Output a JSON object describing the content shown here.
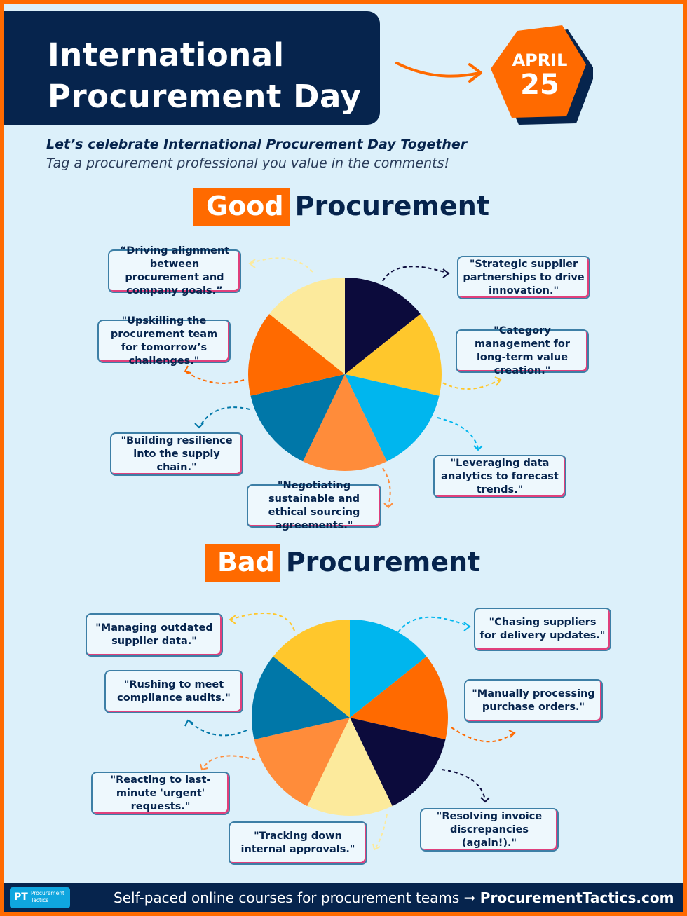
{
  "header": {
    "title_line1": "International",
    "title_line2": "Procurement Day",
    "date_month": "APRIL",
    "date_day": "25"
  },
  "subtitle": {
    "line1": "Let’s celebrate International Procurement Day Together",
    "line2": "Tag a procurement professional you value in the comments!"
  },
  "good": {
    "highlight": "Good",
    "rest": "Procurement",
    "quotes": [
      "“Driving alignment between procurement and company goals.”",
      "\"Strategic supplier partnerships to drive innovation.\"",
      "\"Upskilling the procurement team for tomorrow’s challenges.\"",
      "\"Category management for long-term value creation.\"",
      "\"Building resilience into the supply chain.\"",
      "\"Leveraging data analytics to forecast trends.\"",
      "\"Negotiating sustainable and ethical sourcing agreements.\""
    ]
  },
  "bad": {
    "highlight": "Bad",
    "rest": "Procurement",
    "quotes": [
      "\"Managing outdated supplier data.\"",
      "\"Chasing suppliers for delivery updates.\"",
      "\"Rushing to meet compliance audits.\"",
      "\"Manually processing purchase orders.\"",
      "\"Reacting to last-minute 'urgent' requests.\"",
      "\"Resolving invoice discrepancies (again!).\"",
      "\"Tracking down internal approvals.\""
    ]
  },
  "footer": {
    "logo_abbr": "PT",
    "logo_name": "Procurement Tactics",
    "text": "Self-paced online courses for procurement teams ➞ ",
    "site": "ProcurementTactics.com"
  },
  "colors": {
    "navy": "#06244d",
    "orange": "#ff6a00",
    "light_orange": "#ff8c3a",
    "yellow": "#ffc72c",
    "cream": "#fcea9c",
    "sky": "#00b6ee",
    "teal": "#0077a8",
    "dark": "#0c0b3c"
  },
  "icons": [
    "curved-arrow-icon",
    "dashed-arrow-icon",
    "logo-icon"
  ]
}
